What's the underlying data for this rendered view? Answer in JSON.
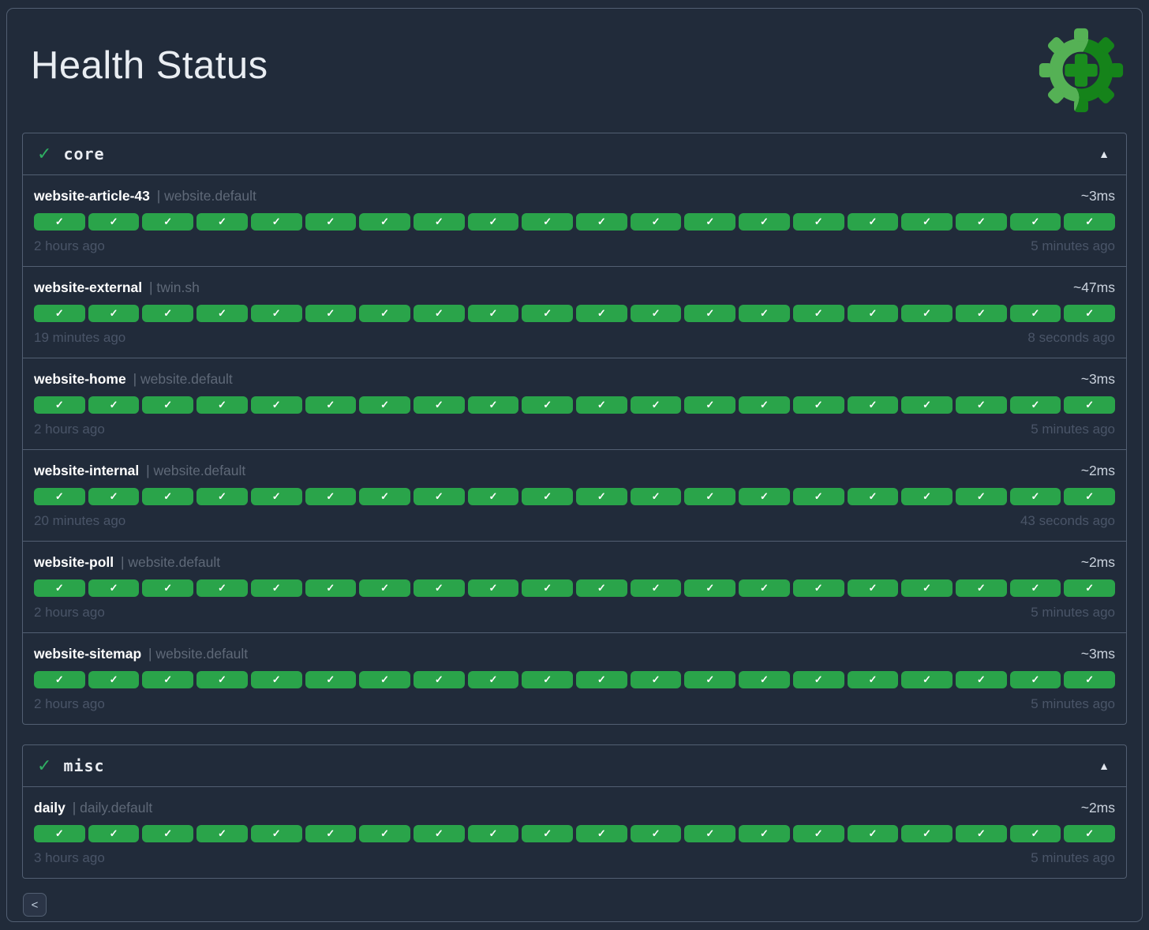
{
  "page": {
    "title": "Health Status",
    "separator": " | "
  },
  "icons": {
    "healthy_check": "✓",
    "collapse": "▲",
    "pill_check": "✓",
    "back": "<"
  },
  "colors": {
    "background": "#212b3a",
    "border": "#525f72",
    "success": "#2aa44a",
    "success_accent": "#2fae62",
    "logo_light": "#55b155",
    "logo_dark": "#15831a",
    "logo_plus": "#1a8c1e"
  },
  "sections": [
    {
      "name": "core",
      "status": "healthy",
      "endpoints": [
        {
          "name": "website-article-43",
          "suffix": "website.default",
          "response_time": "~3ms",
          "oldest": "2 hours ago",
          "newest": "5 minutes ago",
          "checks_count": 20,
          "checks_status": "ok"
        },
        {
          "name": "website-external",
          "suffix": "twin.sh",
          "response_time": "~47ms",
          "oldest": "19 minutes ago",
          "newest": "8 seconds ago",
          "checks_count": 20,
          "checks_status": "ok"
        },
        {
          "name": "website-home",
          "suffix": "website.default",
          "response_time": "~3ms",
          "oldest": "2 hours ago",
          "newest": "5 minutes ago",
          "checks_count": 20,
          "checks_status": "ok"
        },
        {
          "name": "website-internal",
          "suffix": "website.default",
          "response_time": "~2ms",
          "oldest": "20 minutes ago",
          "newest": "43 seconds ago",
          "checks_count": 20,
          "checks_status": "ok"
        },
        {
          "name": "website-poll",
          "suffix": "website.default",
          "response_time": "~2ms",
          "oldest": "2 hours ago",
          "newest": "5 minutes ago",
          "checks_count": 20,
          "checks_status": "ok"
        },
        {
          "name": "website-sitemap",
          "suffix": "website.default",
          "response_time": "~3ms",
          "oldest": "2 hours ago",
          "newest": "5 minutes ago",
          "checks_count": 20,
          "checks_status": "ok"
        }
      ]
    },
    {
      "name": "misc",
      "status": "healthy",
      "endpoints": [
        {
          "name": "daily",
          "suffix": "daily.default",
          "response_time": "~2ms",
          "oldest": "3 hours ago",
          "newest": "5 minutes ago",
          "checks_count": 20,
          "checks_status": "ok"
        }
      ]
    }
  ]
}
